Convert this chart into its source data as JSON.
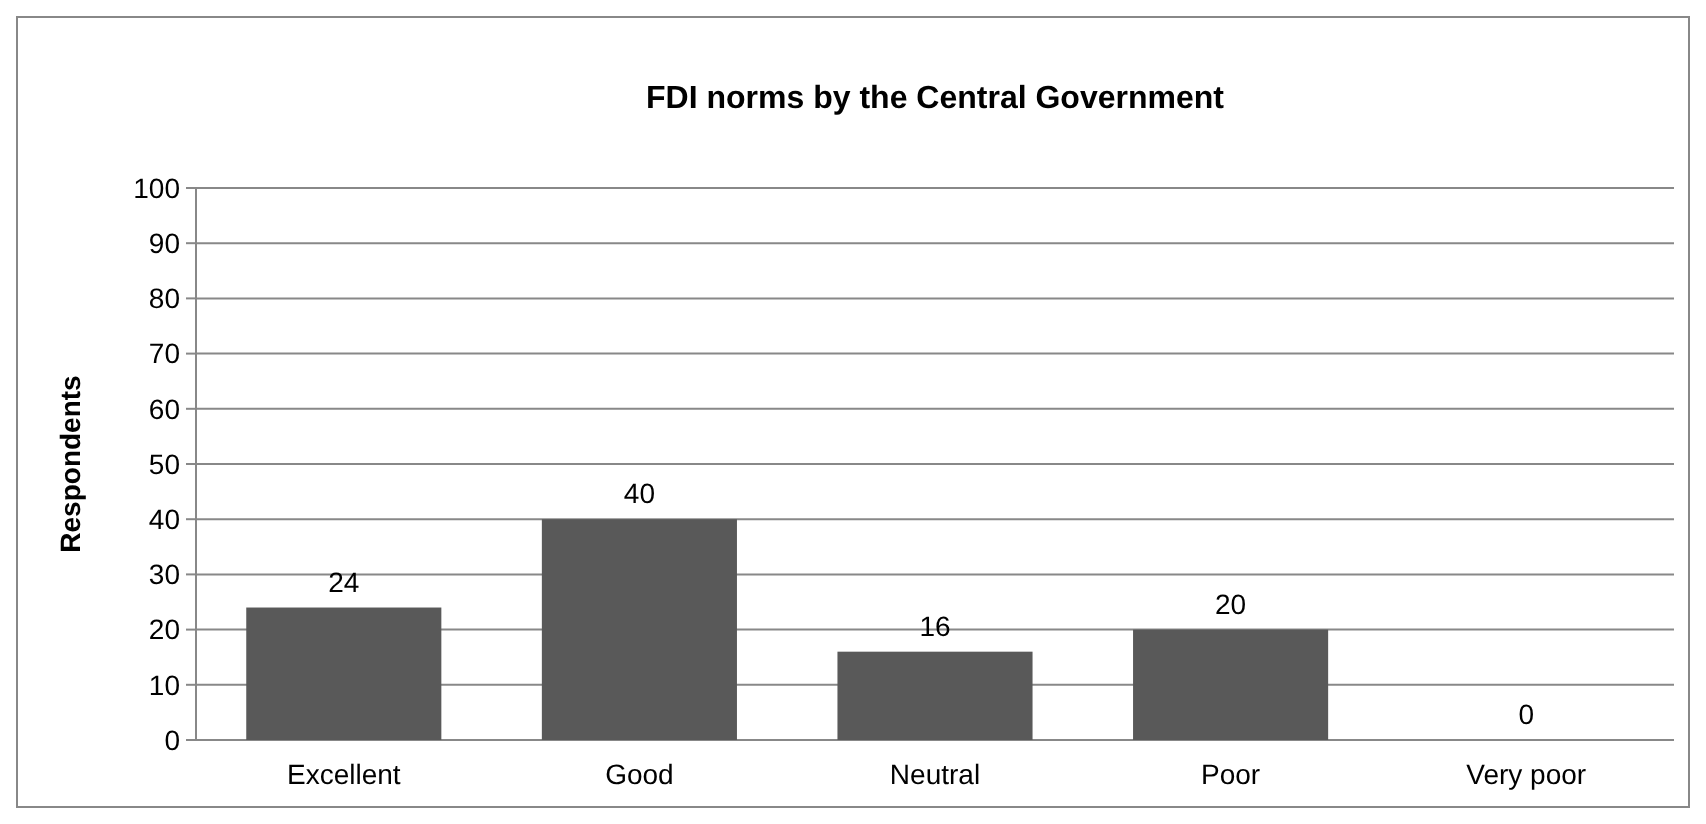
{
  "chart_data": {
    "type": "bar",
    "title": "FDI norms by the Central Government",
    "ylabel": "Respondents",
    "categories": [
      "Excellent",
      "Good",
      "Neutral",
      "Poor",
      "Very poor"
    ],
    "values": [
      24,
      40,
      16,
      20,
      0
    ],
    "color": "#595959",
    "ylim": [
      0,
      100
    ],
    "yticks": [
      0,
      10,
      20,
      30,
      40,
      50,
      60,
      70,
      80,
      90,
      100
    ],
    "grid": "y",
    "data_labels": true
  }
}
